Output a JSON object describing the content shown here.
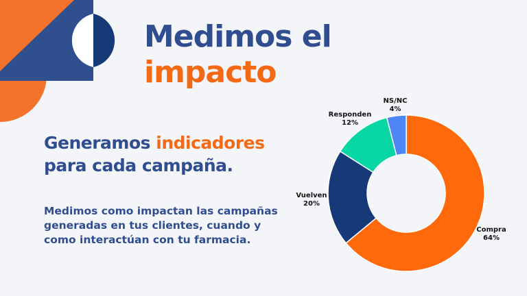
{
  "slide": {
    "title_line1": "Medimos el",
    "title_line2": "impacto",
    "subtitle_part1": "Generamos ",
    "subtitle_highlight": "indicadores",
    "subtitle_line2": "para cada campaña.",
    "body": "Medimos como impactan las campañas generadas en tus clientes, cuando y como interactúan con tu farmacia."
  },
  "colors": {
    "orange": "#f36a16",
    "navy": "#2f4d8f",
    "dark_navy": "#163a78",
    "teal": "#08d6a4",
    "light_blue": "#4f86f7"
  },
  "chart_data": {
    "type": "pie",
    "donut": true,
    "categories": [
      "Compra",
      "Vuelven",
      "Responden",
      "NS/NC"
    ],
    "values": [
      64,
      20,
      12,
      4
    ],
    "labels": [
      "64%",
      "20%",
      "12%",
      "4%"
    ],
    "colors": [
      "#fe6a0b",
      "#163a78",
      "#08d6a4",
      "#4f86f7"
    ]
  }
}
